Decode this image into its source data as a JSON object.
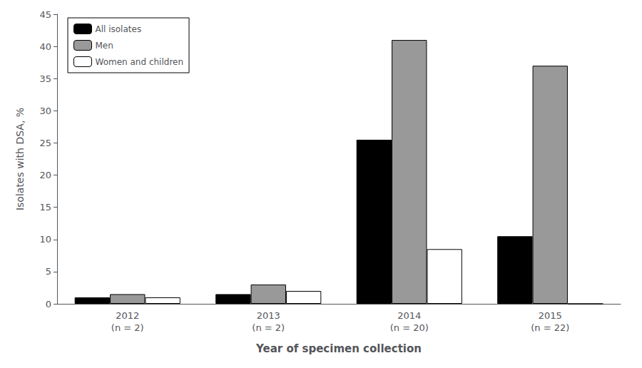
{
  "chart_data": {
    "type": "bar",
    "categories": [
      "2012\n(n = 2)",
      "2013\n(n = 2)",
      "2014\n(n = 20)",
      "2015\n(n = 22)"
    ],
    "series": [
      {
        "name": "All isolates",
        "color": "#000000",
        "values": [
          1.0,
          1.5,
          25.5,
          10.5
        ]
      },
      {
        "name": "Men",
        "color": "#999999",
        "values": [
          1.5,
          3.0,
          41.0,
          37.0
        ]
      },
      {
        "name": "Women and children",
        "color": "#ffffff",
        "values": [
          1.0,
          2.0,
          8.5,
          0.0
        ]
      }
    ],
    "xlabel": "Year of specimen collection",
    "ylabel": "Isolates with DSA, %",
    "ylim": [
      0,
      45
    ],
    "yticks": [
      0,
      5,
      10,
      15,
      20,
      25,
      30,
      35,
      40,
      45
    ],
    "grid": false,
    "legend": "upper left"
  }
}
